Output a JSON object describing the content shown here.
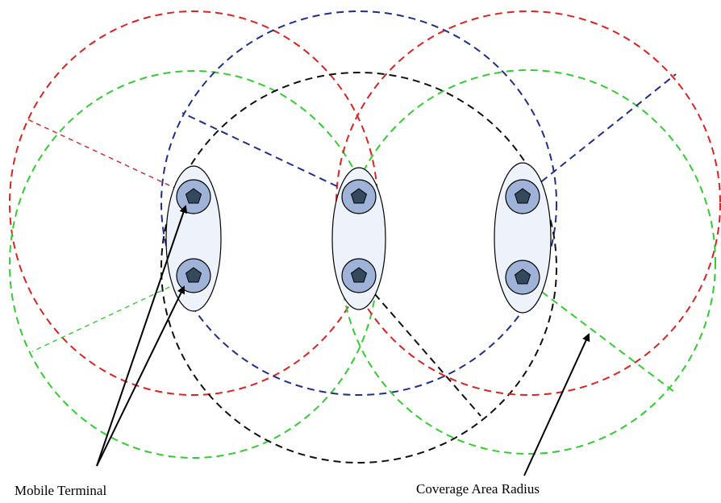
{
  "labels": {
    "mobile_terminal": "Mobile Terminal",
    "coverage_area_radius": "Coverage Area Radius"
  },
  "colors": {
    "red": "#dd2222",
    "green": "#33cc33",
    "blue": "#1f2f8a",
    "black": "#111111",
    "terminal_fill": "#9fb3d8",
    "cluster_fill": "#eef2fa"
  }
}
